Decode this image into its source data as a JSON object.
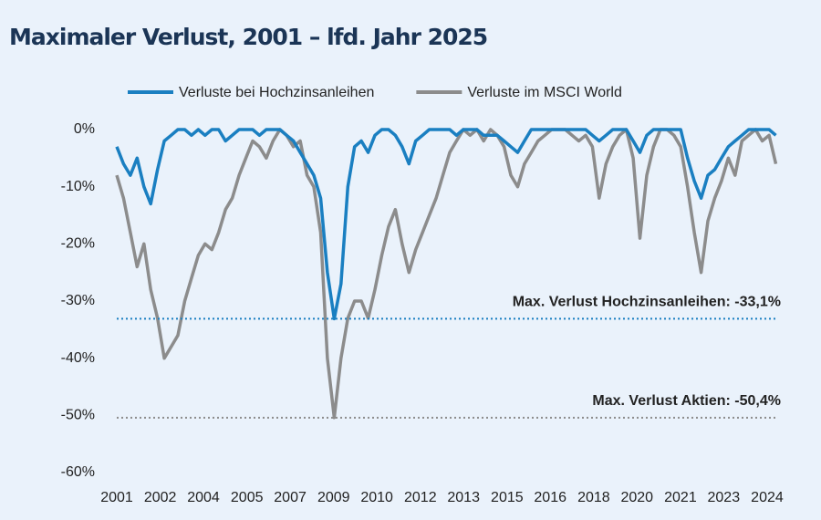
{
  "chart_data": {
    "type": "line",
    "title": "Maximaler Verlust, 2001 – lfd. Jahr 2025",
    "x": [
      2001,
      2001.25,
      2001.5,
      2001.75,
      2002,
      2002.25,
      2002.5,
      2002.75,
      2003,
      2003.25,
      2003.5,
      2003.75,
      2004,
      2004.25,
      2004.5,
      2004.75,
      2005,
      2005.25,
      2005.5,
      2005.75,
      2006,
      2006.25,
      2006.5,
      2006.75,
      2007,
      2007.25,
      2007.5,
      2007.75,
      2008,
      2008.25,
      2008.5,
      2008.75,
      2009,
      2009.25,
      2009.5,
      2009.75,
      2010,
      2010.25,
      2010.5,
      2010.75,
      2011,
      2011.25,
      2011.5,
      2011.75,
      2012,
      2012.25,
      2012.5,
      2012.75,
      2013,
      2013.25,
      2013.5,
      2013.75,
      2014,
      2014.25,
      2014.5,
      2014.75,
      2015,
      2015.25,
      2015.5,
      2015.75,
      2016,
      2016.25,
      2016.5,
      2016.75,
      2017,
      2017.25,
      2017.5,
      2017.75,
      2018,
      2018.25,
      2018.5,
      2018.75,
      2019,
      2019.25,
      2019.5,
      2019.75,
      2020,
      2020.25,
      2020.5,
      2020.75,
      2021,
      2021.25,
      2021.5,
      2021.75,
      2022,
      2022.25,
      2022.5,
      2022.75,
      2023,
      2023.25,
      2023.5,
      2023.75,
      2024,
      2024.25,
      2024.5,
      2024.75,
      2025,
      2025.25
    ],
    "series": [
      {
        "name": "Verluste bei Hochzinsanleihen",
        "color": "#1a7fc1",
        "values": [
          -3,
          -6,
          -8,
          -5,
          -10,
          -13,
          -7,
          -2,
          -1,
          0,
          0,
          -1,
          0,
          -1,
          0,
          0,
          -2,
          -1,
          0,
          0,
          0,
          -1,
          0,
          0,
          0,
          -1,
          -2,
          -4,
          -6,
          -8,
          -12,
          -25,
          -33.1,
          -27,
          -10,
          -3,
          -2,
          -4,
          -1,
          0,
          0,
          -1,
          -3,
          -6,
          -2,
          -1,
          0,
          0,
          0,
          0,
          -1,
          0,
          0,
          0,
          -1,
          -1,
          -1,
          -2,
          -3,
          -4,
          -2,
          0,
          0,
          0,
          0,
          0,
          0,
          0,
          0,
          0,
          -1,
          -2,
          -1,
          0,
          0,
          0,
          -2,
          -4,
          -1,
          0,
          0,
          0,
          0,
          0,
          -5,
          -9,
          -12,
          -8,
          -7,
          -5,
          -3,
          -2,
          -1,
          0,
          0,
          0,
          0,
          -1
        ]
      },
      {
        "name": "Verluste im MSCI World",
        "color": "#8c8c8c",
        "values": [
          -8,
          -12,
          -18,
          -24,
          -20,
          -28,
          -33,
          -40,
          -38,
          -36,
          -30,
          -26,
          -22,
          -20,
          -21,
          -18,
          -14,
          -12,
          -8,
          -5,
          -2,
          -3,
          -5,
          -2,
          0,
          -1,
          -3,
          -2,
          -8,
          -10,
          -18,
          -40,
          -50.4,
          -40,
          -33,
          -30,
          -30,
          -33,
          -28,
          -22,
          -17,
          -14,
          -20,
          -25,
          -21,
          -18,
          -15,
          -12,
          -8,
          -4,
          -2,
          0,
          -1,
          0,
          -2,
          0,
          -1,
          -3,
          -8,
          -10,
          -6,
          -4,
          -2,
          -1,
          0,
          0,
          0,
          -1,
          -2,
          -1,
          -3,
          -12,
          -6,
          -3,
          -1,
          0,
          -5,
          -19,
          -8,
          -3,
          0,
          0,
          -1,
          -3,
          -10,
          -18,
          -25,
          -16,
          -12,
          -9,
          -5,
          -8,
          -2,
          -1,
          0,
          -2,
          -1,
          -6
        ]
      }
    ],
    "hlines": [
      {
        "value": -33.1,
        "label": "Max. Verlust Hochzinsanleihen: -33,1%",
        "color": "#1a7fc1"
      },
      {
        "value": -50.4,
        "label": "Max. Verlust Aktien: -50,4%",
        "color": "#8c8c8c"
      }
    ],
    "xlim": [
      2001,
      2025.3
    ],
    "xticks": [
      {
        "value": 2001,
        "label": "2001"
      },
      {
        "value": 2002.6,
        "label": "2002"
      },
      {
        "value": 2004.19,
        "label": "2004"
      },
      {
        "value": 2005.79,
        "label": "2005"
      },
      {
        "value": 2007.38,
        "label": "2007"
      },
      {
        "value": 2008.98,
        "label": "2009"
      },
      {
        "value": 2010.57,
        "label": "2010"
      },
      {
        "value": 2012.17,
        "label": "2012"
      },
      {
        "value": 2013.76,
        "label": "2013"
      },
      {
        "value": 2015.36,
        "label": "2015"
      },
      {
        "value": 2016.95,
        "label": "2016"
      },
      {
        "value": 2018.55,
        "label": "2018"
      },
      {
        "value": 2020.14,
        "label": "2020"
      },
      {
        "value": 2021.74,
        "label": "2021"
      },
      {
        "value": 2023.33,
        "label": "2023"
      },
      {
        "value": 2024.93,
        "label": "2024"
      }
    ],
    "ylim": [
      -60,
      0
    ],
    "yticks": [
      {
        "value": 0,
        "label": "0%"
      },
      {
        "value": -10,
        "label": "-10%"
      },
      {
        "value": -20,
        "label": "-20%"
      },
      {
        "value": -30,
        "label": "-30%"
      },
      {
        "value": -40,
        "label": "-40%"
      },
      {
        "value": -50,
        "label": "-50%"
      },
      {
        "value": -60,
        "label": "-60%"
      }
    ],
    "legend": "top"
  }
}
